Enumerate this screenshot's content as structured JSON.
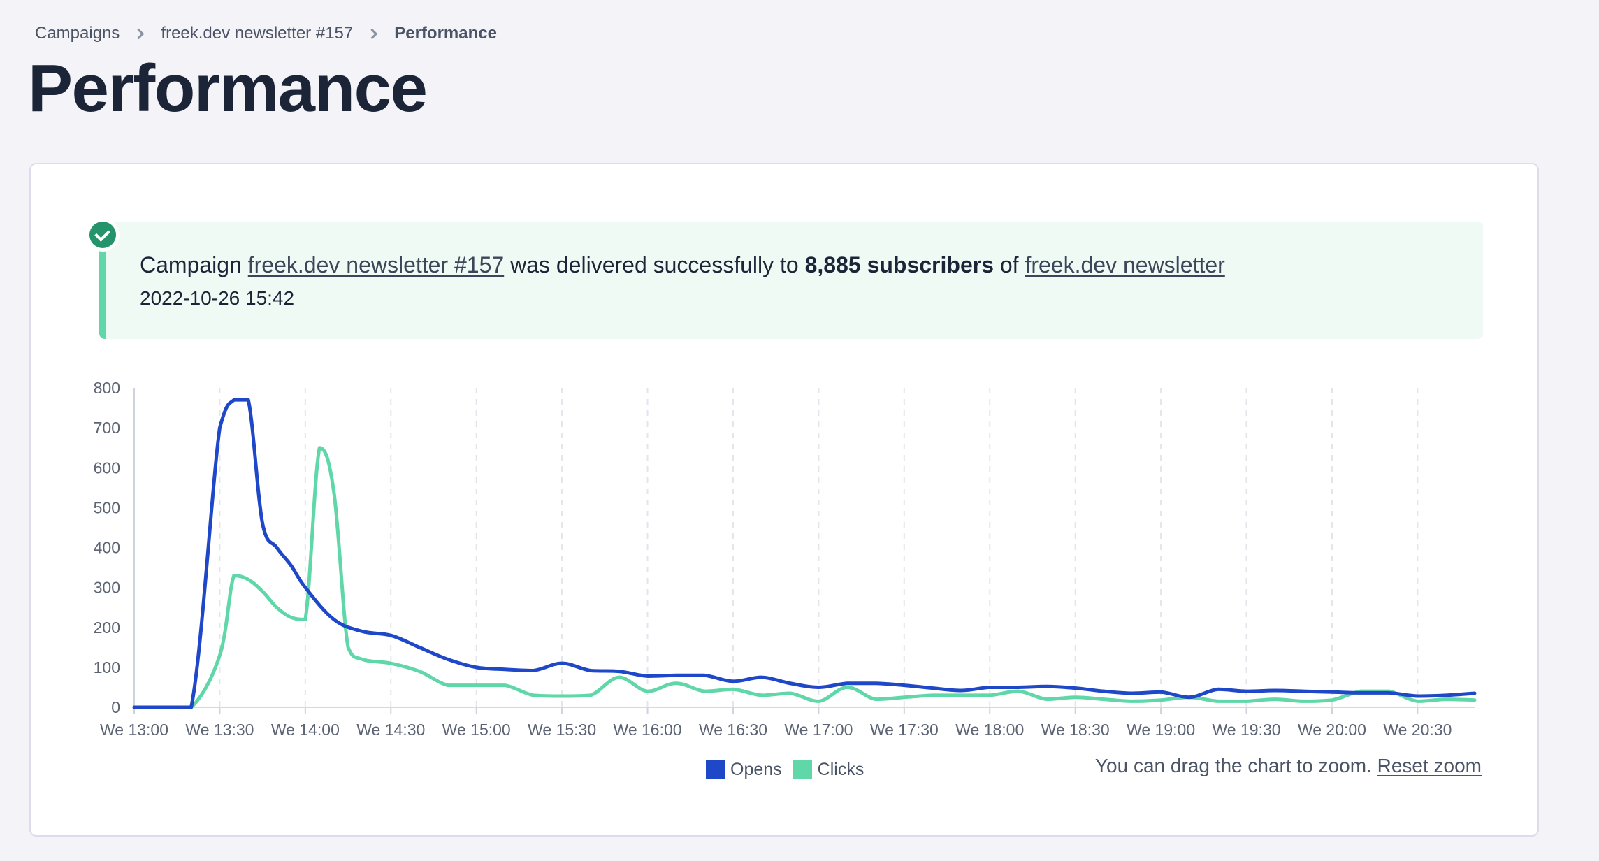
{
  "breadcrumb": {
    "items": [
      "Campaigns",
      "freek.dev newsletter #157"
    ],
    "current": "Performance"
  },
  "page_title": "Performance",
  "alert": {
    "prefix": "Campaign",
    "campaign_link": "freek.dev newsletter #157",
    "middle": "was delivered successfully to",
    "subscribers": "8,885 subscribers",
    "of": "of",
    "list_link": "freek.dev newsletter",
    "timestamp": "2022-10-26 15:42",
    "icon": "check-circle-icon",
    "color": "#5fd7a8"
  },
  "zoom_note": {
    "text": "You can drag the chart to zoom.",
    "reset_label": "Reset zoom"
  },
  "chart_data": {
    "type": "line",
    "ylim": [
      0,
      800
    ],
    "y_ticks": [
      0,
      100,
      200,
      300,
      400,
      500,
      600,
      700,
      800
    ],
    "x_tick_labels": [
      "We 13:00",
      "We 13:30",
      "We 14:00",
      "We 14:30",
      "We 15:00",
      "We 15:30",
      "We 16:00",
      "We 16:30",
      "We 17:00",
      "We 17:30",
      "We 18:00",
      "We 18:30",
      "We 19:00",
      "We 19:30",
      "We 20:00",
      "We 20:30"
    ],
    "x_unit": "minutes since 13:00",
    "grid": "vertical dashed",
    "legend": "bottom-center",
    "series": [
      {
        "name": "Opens",
        "color": "#1e48c8",
        "x": [
          0,
          10,
          20,
          30,
          35,
          40,
          45,
          50,
          55,
          60,
          70,
          80,
          90,
          100,
          110,
          120,
          130,
          140,
          150,
          160,
          170,
          180,
          190,
          200,
          210,
          220,
          230,
          240,
          250,
          260,
          270,
          280,
          290,
          300,
          310,
          320,
          330,
          340,
          350,
          360,
          370,
          380,
          390,
          400,
          410,
          420,
          430,
          440,
          450,
          460,
          470
        ],
        "values": [
          0,
          0,
          0,
          700,
          770,
          770,
          460,
          400,
          355,
          300,
          220,
          190,
          180,
          150,
          120,
          100,
          95,
          92,
          110,
          92,
          90,
          78,
          80,
          80,
          65,
          75,
          60,
          50,
          60,
          60,
          55,
          48,
          42,
          50,
          50,
          52,
          48,
          40,
          35,
          38,
          25,
          45,
          40,
          42,
          40,
          38,
          36,
          36,
          28,
          30,
          35
        ]
      },
      {
        "name": "Clicks",
        "color": "#5fd7a8",
        "x": [
          0,
          10,
          20,
          30,
          35,
          40,
          45,
          50,
          55,
          60,
          65,
          70,
          75,
          80,
          90,
          100,
          110,
          120,
          130,
          140,
          150,
          160,
          170,
          180,
          190,
          200,
          210,
          220,
          230,
          240,
          250,
          260,
          270,
          280,
          290,
          300,
          310,
          320,
          330,
          340,
          350,
          360,
          370,
          380,
          390,
          400,
          410,
          420,
          430,
          440,
          450,
          460,
          470
        ],
        "values": [
          0,
          0,
          0,
          130,
          330,
          320,
          290,
          250,
          225,
          220,
          650,
          540,
          150,
          120,
          110,
          90,
          55,
          55,
          55,
          30,
          28,
          30,
          75,
          40,
          60,
          40,
          45,
          30,
          35,
          15,
          50,
          20,
          25,
          30,
          30,
          30,
          40,
          20,
          25,
          20,
          15,
          18,
          25,
          15,
          15,
          20,
          15,
          18,
          40,
          40,
          15,
          20,
          18
        ]
      }
    ]
  }
}
